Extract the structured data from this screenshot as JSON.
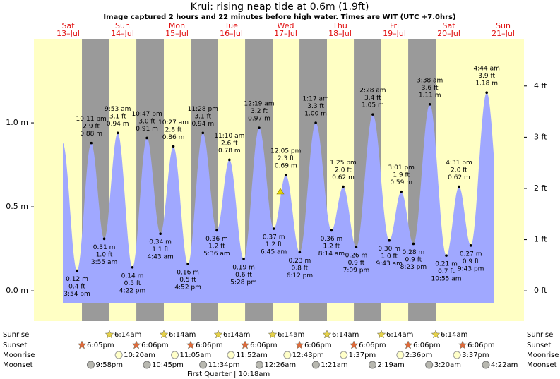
{
  "chart_data": {
    "type": "tide",
    "title": "Krui: rising  neap tide at 0.6m (1.9ft)",
    "subtitle": "Image captured 2 hours and 22 minutes before high water. Times are WIT (UTC +7.0hrs)",
    "days": [
      {
        "name": "Sat",
        "date": "13–Jul"
      },
      {
        "name": "Sun",
        "date": "14–Jul"
      },
      {
        "name": "Mon",
        "date": "15–Jul"
      },
      {
        "name": "Tue",
        "date": "16–Jul"
      },
      {
        "name": "Wed",
        "date": "17–Jul"
      },
      {
        "name": "Thu",
        "date": "18–Jul"
      },
      {
        "name": "Fri",
        "date": "19–Jul"
      },
      {
        "name": "Sat",
        "date": "20–Jul"
      },
      {
        "name": "Sun",
        "date": "21–Jul"
      }
    ],
    "tides": [
      {
        "time": "3:54 pm",
        "feet": "0.4 ft",
        "meters": 0.12,
        "meters_label": "0.12 m"
      },
      {
        "time": "10:11 pm",
        "feet": "2.9 ft",
        "meters": 0.88,
        "meters_label": "0.88 m"
      },
      {
        "time": "3:55 am",
        "feet": "1.0 ft",
        "meters": 0.31,
        "meters_label": "0.31 m"
      },
      {
        "time": "9:53 am",
        "feet": "3.1 ft",
        "meters": 0.94,
        "meters_label": "0.94 m"
      },
      {
        "time": "4:22 pm",
        "feet": "0.5 ft",
        "meters": 0.14,
        "meters_label": "0.14 m"
      },
      {
        "time": "10:47 pm",
        "feet": "3.0 ft",
        "meters": 0.91,
        "meters_label": "0.91 m"
      },
      {
        "time": "4:43 am",
        "feet": "1.1 ft",
        "meters": 0.34,
        "meters_label": "0.34 m"
      },
      {
        "time": "10:27 am",
        "feet": "2.8 ft",
        "meters": 0.86,
        "meters_label": "0.86 m"
      },
      {
        "time": "4:52 pm",
        "feet": "0.5 ft",
        "meters": 0.16,
        "meters_label": "0.16 m"
      },
      {
        "time": "11:28 pm",
        "feet": "3.1 ft",
        "meters": 0.94,
        "meters_label": "0.94 m"
      },
      {
        "time": "5:36 am",
        "feet": "1.2 ft",
        "meters": 0.36,
        "meters_label": "0.36 m"
      },
      {
        "time": "11:10 am",
        "feet": "2.6 ft",
        "meters": 0.78,
        "meters_label": "0.78 m"
      },
      {
        "time": "5:28 pm",
        "feet": "0.6 ft",
        "meters": 0.19,
        "meters_label": "0.19 m"
      },
      {
        "time": "12:19 am",
        "feet": "3.2 ft",
        "meters": 0.97,
        "meters_label": "0.97 m"
      },
      {
        "time": "6:45 am",
        "feet": "1.2 ft",
        "meters": 0.37,
        "meters_label": "0.37 m"
      },
      {
        "time": "12:05 pm",
        "feet": "2.3 ft",
        "meters": 0.69,
        "meters_label": "0.69 m"
      },
      {
        "time": "6:12 pm",
        "feet": "0.8 ft",
        "meters": 0.23,
        "meters_label": "0.23 m"
      },
      {
        "time": "1:17 am",
        "feet": "3.3 ft",
        "meters": 1.0,
        "meters_label": "1.00 m"
      },
      {
        "time": "8:14 am",
        "feet": "1.2 ft",
        "meters": 0.36,
        "meters_label": "0.36 m"
      },
      {
        "time": "1:25 pm",
        "feet": "2.0 ft",
        "meters": 0.62,
        "meters_label": "0.62 m"
      },
      {
        "time": "7:09 pm",
        "feet": "0.9 ft",
        "meters": 0.26,
        "meters_label": "0.26 m"
      },
      {
        "time": "2:28 am",
        "feet": "3.4 ft",
        "meters": 1.05,
        "meters_label": "1.05 m"
      },
      {
        "time": "9:43 am",
        "feet": "1.0 ft",
        "meters": 0.3,
        "meters_label": "0.30 m"
      },
      {
        "time": "3:01 pm",
        "feet": "1.9 ft",
        "meters": 0.59,
        "meters_label": "0.59 m"
      },
      {
        "time": "8:23 pm",
        "feet": "0.9 ft",
        "meters": 0.28,
        "meters_label": "0.28 m"
      },
      {
        "time": "3:38 am",
        "feet": "3.6 ft",
        "meters": 1.11,
        "meters_label": "1.11 m"
      },
      {
        "time": "10:55 am",
        "feet": "0.7 ft",
        "meters": 0.21,
        "meters_label": "0.21 m"
      },
      {
        "time": "4:31 pm",
        "feet": "2.0 ft",
        "meters": 0.62,
        "meters_label": "0.62 m"
      },
      {
        "time": "9:43 pm",
        "feet": "0.9 ft",
        "meters": 0.27,
        "meters_label": "0.27 m"
      },
      {
        "time": "4:44 am",
        "feet": "3.9 ft",
        "meters": 1.18,
        "meters_label": "1.18 m"
      }
    ],
    "ylim": [
      -0.18,
      1.5
    ],
    "yticks": [
      {
        "value": 0,
        "label": "0.0 m"
      },
      {
        "value": 0.5,
        "label": "0.5 m"
      },
      {
        "value": 1,
        "label": "1.0 m"
      }
    ],
    "y2lim": [
      -0.59,
      4.92
    ],
    "y2ticks": [
      {
        "value": 0,
        "label": "0 ft"
      },
      {
        "value": 1,
        "label": "1 ft"
      },
      {
        "value": 2,
        "label": "2 ft"
      },
      {
        "value": 3,
        "label": "3 ft"
      },
      {
        "value": 4,
        "label": "4 ft"
      }
    ],
    "colors": {
      "water": "#a0a8ff",
      "day": "#ffffc4",
      "night": "#9a9a9a",
      "date": "#e01010"
    }
  },
  "almanac": {
    "sunrise": {
      "label": "Sunrise",
      "times": [
        "6:14am",
        "6:14am",
        "6:14am",
        "6:14am",
        "6:14am",
        "6:14am",
        "6:14am"
      ]
    },
    "sunset": {
      "label": "Sunset",
      "times": [
        "6:05pm",
        "6:06pm",
        "6:06pm",
        "6:06pm",
        "6:06pm",
        "6:06pm",
        "6:06pm",
        "6:06pm"
      ]
    },
    "moonrise": {
      "label": "Moonrise",
      "times": [
        "10:20am",
        "11:05am",
        "11:52am",
        "12:43pm",
        "1:37pm",
        "2:36pm",
        "3:37pm"
      ]
    },
    "moonset": {
      "label": "Moonset",
      "times": [
        "9:58pm",
        "10:45pm",
        "11:34pm",
        "12:26am",
        "1:21am",
        "2:19am",
        "3:20am",
        "4:22am"
      ]
    },
    "moon_phase": "First Quarter | 10:18am"
  }
}
